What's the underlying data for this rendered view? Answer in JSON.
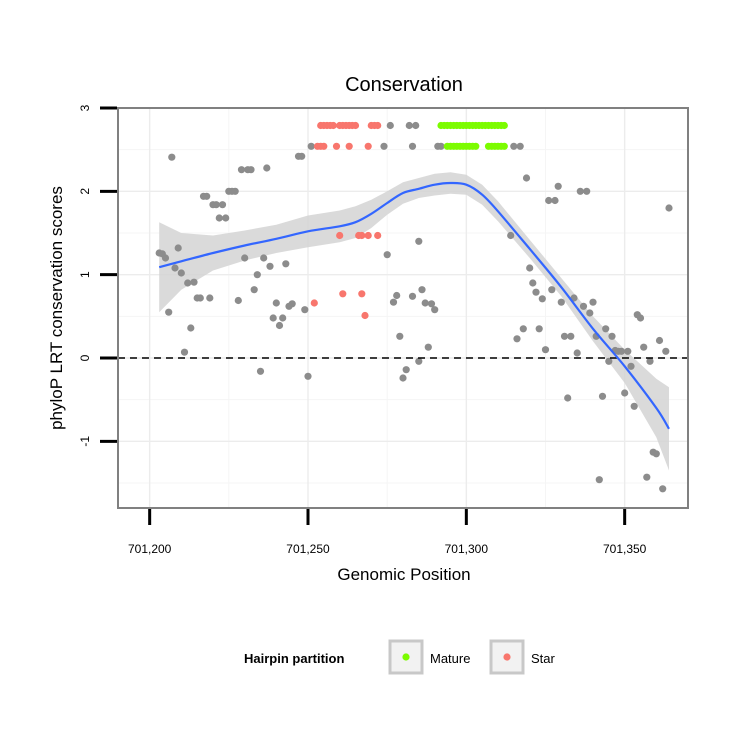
{
  "chart_data": {
    "type": "scatter",
    "title": "Conservation",
    "xlabel": "Genomic Position",
    "ylabel": "phyloP LRT conservation scores",
    "xlim": [
      701190,
      701370
    ],
    "ylim": [
      -1.8,
      3.0
    ],
    "x_ticks": [
      701200,
      701250,
      701300,
      701350
    ],
    "x_tick_labels": [
      "701,200",
      "701,250",
      "701,300",
      "701,350"
    ],
    "y_ticks": [
      -1,
      0,
      1,
      2,
      3
    ],
    "y_tick_labels": [
      "-1",
      "0",
      "1",
      "2",
      "3"
    ],
    "reference_line": {
      "y": 0,
      "style": "dashed"
    },
    "legend": {
      "title": "Hairpin partition",
      "position": "bottom",
      "entries": [
        {
          "label": "Mature",
          "color": "#7cfc00"
        },
        {
          "label": "Star",
          "color": "#f8766d"
        }
      ]
    },
    "colors": {
      "other": "#8c8c8c",
      "mature": "#7cfc00",
      "star": "#f8766d",
      "smooth": "#3366ff",
      "band": "#d3d3d3"
    },
    "series": [
      {
        "name": "Other",
        "points": [
          [
            701203,
            1.26
          ],
          [
            701204,
            1.25
          ],
          [
            701205,
            1.2
          ],
          [
            701206,
            0.55
          ],
          [
            701207,
            2.41
          ],
          [
            701208,
            1.08
          ],
          [
            701209,
            1.32
          ],
          [
            701210,
            1.02
          ],
          [
            701211,
            0.07
          ],
          [
            701212,
            0.9
          ],
          [
            701213,
            0.36
          ],
          [
            701214,
            0.91
          ],
          [
            701215,
            0.72
          ],
          [
            701216,
            0.72
          ],
          [
            701217,
            1.94
          ],
          [
            701218,
            1.94
          ],
          [
            701219,
            0.72
          ],
          [
            701220,
            1.84
          ],
          [
            701221,
            1.84
          ],
          [
            701222,
            1.68
          ],
          [
            701223,
            1.84
          ],
          [
            701224,
            1.68
          ],
          [
            701225,
            2.0
          ],
          [
            701226,
            2.0
          ],
          [
            701227,
            2.0
          ],
          [
            701228,
            0.69
          ],
          [
            701229,
            2.26
          ],
          [
            701230,
            1.2
          ],
          [
            701231,
            2.26
          ],
          [
            701232,
            2.26
          ],
          [
            701233,
            0.82
          ],
          [
            701234,
            1.0
          ],
          [
            701235,
            -0.16
          ],
          [
            701236,
            1.2
          ],
          [
            701237,
            2.28
          ],
          [
            701238,
            1.1
          ],
          [
            701239,
            0.48
          ],
          [
            701240,
            0.66
          ],
          [
            701241,
            0.39
          ],
          [
            701242,
            0.48
          ],
          [
            701243,
            1.13
          ],
          [
            701244,
            0.62
          ],
          [
            701245,
            0.65
          ],
          [
            701247,
            2.42
          ],
          [
            701248,
            2.42
          ],
          [
            701249,
            0.58
          ],
          [
            701250,
            -0.22
          ],
          [
            701251,
            2.54
          ],
          [
            701283,
            0.74
          ],
          [
            701284,
            2.79
          ],
          [
            701285,
            -0.04
          ],
          [
            701286,
            0.82
          ],
          [
            701287,
            0.66
          ],
          [
            701288,
            0.13
          ],
          [
            701289,
            0.65
          ],
          [
            701290,
            0.58
          ],
          [
            701274,
            2.54
          ],
          [
            701275,
            1.24
          ],
          [
            701276,
            2.79
          ],
          [
            701277,
            0.67
          ],
          [
            701278,
            0.75
          ],
          [
            701279,
            0.26
          ],
          [
            701280,
            -0.24
          ],
          [
            701281,
            -0.14
          ],
          [
            701282,
            2.79
          ],
          [
            701283,
            2.54
          ],
          [
            701285,
            1.4
          ],
          [
            701291,
            2.54
          ],
          [
            701292,
            2.54
          ],
          [
            701314,
            1.47
          ],
          [
            701315,
            2.54
          ],
          [
            701316,
            0.23
          ],
          [
            701317,
            2.54
          ],
          [
            701318,
            0.35
          ],
          [
            701319,
            2.16
          ],
          [
            701320,
            1.08
          ],
          [
            701321,
            0.9
          ],
          [
            701322,
            0.79
          ],
          [
            701323,
            0.35
          ],
          [
            701324,
            0.71
          ],
          [
            701325,
            0.1
          ],
          [
            701326,
            1.89
          ],
          [
            701327,
            0.82
          ],
          [
            701328,
            1.89
          ],
          [
            701329,
            2.06
          ],
          [
            701330,
            0.67
          ],
          [
            701331,
            0.26
          ],
          [
            701332,
            -0.48
          ],
          [
            701333,
            0.26
          ],
          [
            701334,
            0.72
          ],
          [
            701335,
            0.06
          ],
          [
            701336,
            2.0
          ],
          [
            701337,
            0.62
          ],
          [
            701338,
            2.0
          ],
          [
            701339,
            0.54
          ],
          [
            701340,
            0.67
          ],
          [
            701341,
            0.26
          ],
          [
            701342,
            -1.46
          ],
          [
            701343,
            -0.46
          ],
          [
            701344,
            0.35
          ],
          [
            701345,
            -0.04
          ],
          [
            701346,
            0.26
          ],
          [
            701347,
            0.09
          ],
          [
            701348,
            0.08
          ],
          [
            701349,
            0.08
          ],
          [
            701350,
            -0.42
          ],
          [
            701351,
            0.08
          ],
          [
            701352,
            -0.1
          ],
          [
            701353,
            -0.58
          ],
          [
            701354,
            0.52
          ],
          [
            701355,
            0.48
          ],
          [
            701356,
            0.13
          ],
          [
            701357,
            -1.43
          ],
          [
            701358,
            -0.04
          ],
          [
            701359,
            -1.13
          ],
          [
            701360,
            -1.15
          ],
          [
            701361,
            0.21
          ],
          [
            701362,
            -1.57
          ],
          [
            701363,
            0.08
          ],
          [
            701364,
            1.8
          ]
        ]
      },
      {
        "name": "Mature",
        "points": [
          [
            701292,
            2.79
          ],
          [
            701293,
            2.79
          ],
          [
            701294,
            2.79
          ],
          [
            701295,
            2.79
          ],
          [
            701296,
            2.79
          ],
          [
            701297,
            2.79
          ],
          [
            701298,
            2.79
          ],
          [
            701299,
            2.79
          ],
          [
            701300,
            2.79
          ],
          [
            701301,
            2.79
          ],
          [
            701302,
            2.79
          ],
          [
            701303,
            2.79
          ],
          [
            701304,
            2.79
          ],
          [
            701305,
            2.79
          ],
          [
            701306,
            2.79
          ],
          [
            701307,
            2.79
          ],
          [
            701308,
            2.79
          ],
          [
            701309,
            2.79
          ],
          [
            701310,
            2.79
          ],
          [
            701311,
            2.79
          ],
          [
            701312,
            2.79
          ],
          [
            701294,
            2.54
          ],
          [
            701295,
            2.54
          ],
          [
            701296,
            2.54
          ],
          [
            701297,
            2.54
          ],
          [
            701298,
            2.54
          ],
          [
            701299,
            2.54
          ],
          [
            701300,
            2.54
          ],
          [
            701301,
            2.54
          ],
          [
            701302,
            2.54
          ],
          [
            701303,
            2.54
          ],
          [
            701307,
            2.54
          ],
          [
            701308,
            2.54
          ],
          [
            701309,
            2.54
          ],
          [
            701310,
            2.54
          ],
          [
            701311,
            2.54
          ],
          [
            701312,
            2.54
          ]
        ]
      },
      {
        "name": "Star",
        "points": [
          [
            701254,
            2.79
          ],
          [
            701255,
            2.79
          ],
          [
            701256,
            2.79
          ],
          [
            701257,
            2.79
          ],
          [
            701258,
            2.79
          ],
          [
            701260,
            2.79
          ],
          [
            701261,
            2.79
          ],
          [
            701262,
            2.79
          ],
          [
            701263,
            2.79
          ],
          [
            701264,
            2.79
          ],
          [
            701265,
            2.79
          ],
          [
            701270,
            2.79
          ],
          [
            701271,
            2.79
          ],
          [
            701272,
            2.79
          ],
          [
            701253,
            2.54
          ],
          [
            701254,
            2.54
          ],
          [
            701255,
            2.54
          ],
          [
            701259,
            2.54
          ],
          [
            701263,
            2.54
          ],
          [
            701269,
            2.54
          ],
          [
            701252,
            0.66
          ],
          [
            701260,
            1.47
          ],
          [
            701261,
            0.77
          ],
          [
            701266,
            1.47
          ],
          [
            701267,
            0.77
          ],
          [
            701267,
            1.47
          ],
          [
            701268,
            0.51
          ],
          [
            701269,
            1.47
          ],
          [
            701272,
            1.47
          ]
        ]
      }
    ],
    "smooth": {
      "method": "loess",
      "x": [
        701203,
        701210,
        701220,
        701230,
        701240,
        701250,
        701260,
        701265,
        701270,
        701275,
        701280,
        701285,
        701290,
        701295,
        701300,
        701305,
        701310,
        701320,
        701330,
        701340,
        701350,
        701360,
        701364
      ],
      "y": [
        1.09,
        1.16,
        1.26,
        1.35,
        1.43,
        1.52,
        1.58,
        1.63,
        1.73,
        1.86,
        1.98,
        2.03,
        2.08,
        2.1,
        2.08,
        1.96,
        1.76,
        1.31,
        0.85,
        0.35,
        -0.1,
        -0.6,
        -0.85
      ],
      "lower": [
        0.55,
        0.82,
        1.05,
        1.17,
        1.26,
        1.33,
        1.39,
        1.44,
        1.56,
        1.72,
        1.85,
        1.92,
        1.95,
        1.97,
        1.96,
        1.84,
        1.64,
        1.2,
        0.74,
        0.2,
        -0.3,
        -0.95,
        -1.35
      ],
      "upper": [
        1.63,
        1.5,
        1.47,
        1.53,
        1.6,
        1.71,
        1.77,
        1.82,
        1.9,
        2.0,
        2.11,
        2.16,
        2.21,
        2.23,
        2.2,
        2.08,
        1.88,
        1.42,
        0.96,
        0.5,
        0.1,
        -0.25,
        -0.35
      ]
    }
  }
}
